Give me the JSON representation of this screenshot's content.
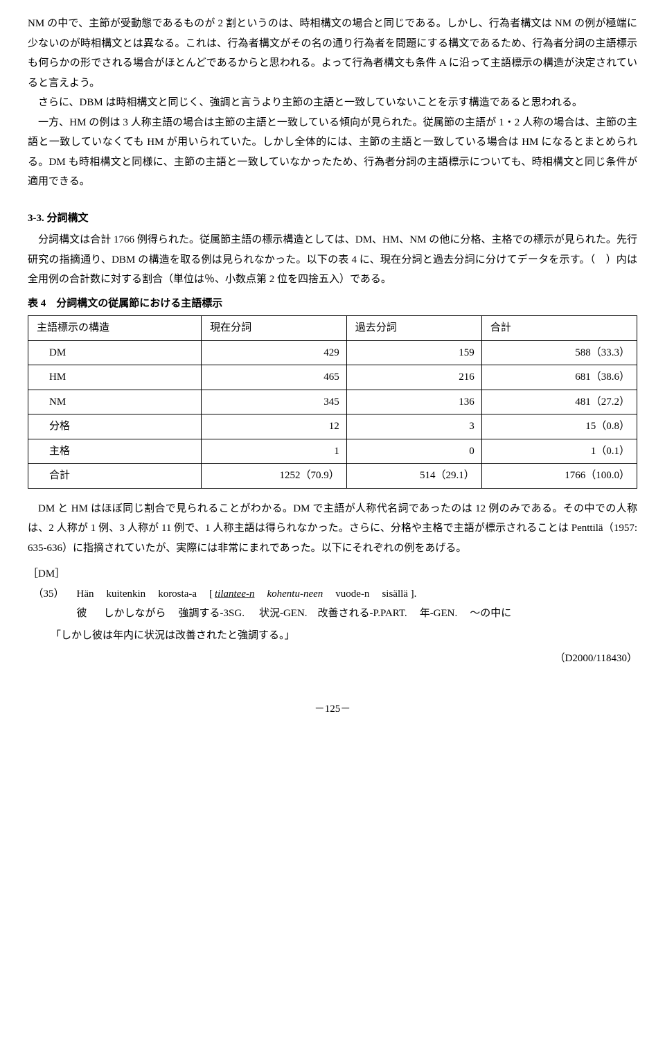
{
  "para1": "NM の中で、主節が受動態であるものが 2 割というのは、時相構文の場合と同じである。しかし、行為者構文は NM の例が極端に少ないのが時相構文とは異なる。これは、行為者構文がその名の通り行為者を問題にする構文であるため、行為者分詞の主語標示も何らかの形でされる場合がほとんどであるからと思われる。よって行為者構文も条件 A に沿って主語標示の構造が決定されていると言えよう。",
  "para2": "さらに、DBM は時相構文と同じく、強調と言うより主節の主語と一致していないことを示す構造であると思われる。",
  "para3": "一方、HM の例は 3 人称主語の場合は主節の主語と一致している傾向が見られた。従属節の主語が 1・2 人称の場合は、主節の主語と一致していなくても HM が用いられていた。しかし全体的には、主節の主語と一致している場合は HM になるとまとめられる。DM も時相構文と同様に、主節の主語と一致していなかったため、行為者分詞の主語標示についても、時相構文と同じ条件が適用できる。",
  "section_title": "3-3. 分詞構文",
  "para4": "分詞構文は合計 1766 例得られた。従属節主語の標示構造としては、DM、HM、NM の他に分格、主格での標示が見られた。先行研究の指摘通り、DBM の構造を取る例は見られなかった。以下の表 4 に、現在分詞と過去分詞に分けてデータを示す。（　）内は全用例の合計数に対する割合（単位は％、小数点第 2 位を四捨五入）である。",
  "table_title": "表 4　分詞構文の従属節における主語標示",
  "table": {
    "headers": [
      "主語標示の構造",
      "現在分詞",
      "過去分詞",
      "合計"
    ],
    "rows": [
      [
        "DM",
        "429",
        "159",
        "588（33.3）"
      ],
      [
        "HM",
        "465",
        "216",
        "681（38.6）"
      ],
      [
        "NM",
        "345",
        "136",
        "481（27.2）"
      ],
      [
        "分格",
        "12",
        "3",
        "15（0.8）"
      ],
      [
        "主格",
        "1",
        "0",
        "1（0.1）"
      ],
      [
        "合計",
        "1252（70.9）",
        "514（29.1）",
        "1766（100.0）"
      ]
    ]
  },
  "para5": "DM と HM はほぼ同じ割合で見られることがわかる。DM で主語が人称代名詞であったのは 12 例のみである。その中での人称は、2 人称が 1 例、3 人称が 11 例で、1 人称主語は得られなかった。さらに、分格や主格で主語が標示されることは Penttilä（1957: 635-636）に指摘されていたが、実際には非常にまれであった。以下にそれぞれの例をあげる。",
  "example_label": "［DM］",
  "ex_num": "（35）",
  "gloss": {
    "r1": [
      "Hän",
      "kuitenkin",
      "korosta-a",
      "[",
      "tilantee-n",
      "kohentu-neen",
      "vuode-n",
      "sisällä ]."
    ],
    "r2": [
      "彼",
      "しかしながら",
      "強調する-3SG.",
      "",
      "状況-GEN.",
      "改善される-P.PART.",
      "年-GEN.",
      "～の中に"
    ]
  },
  "translation": "「しかし彼は年内に状況は改善されたと強調する。」",
  "source": "（D2000/118430）",
  "page": "－125－"
}
